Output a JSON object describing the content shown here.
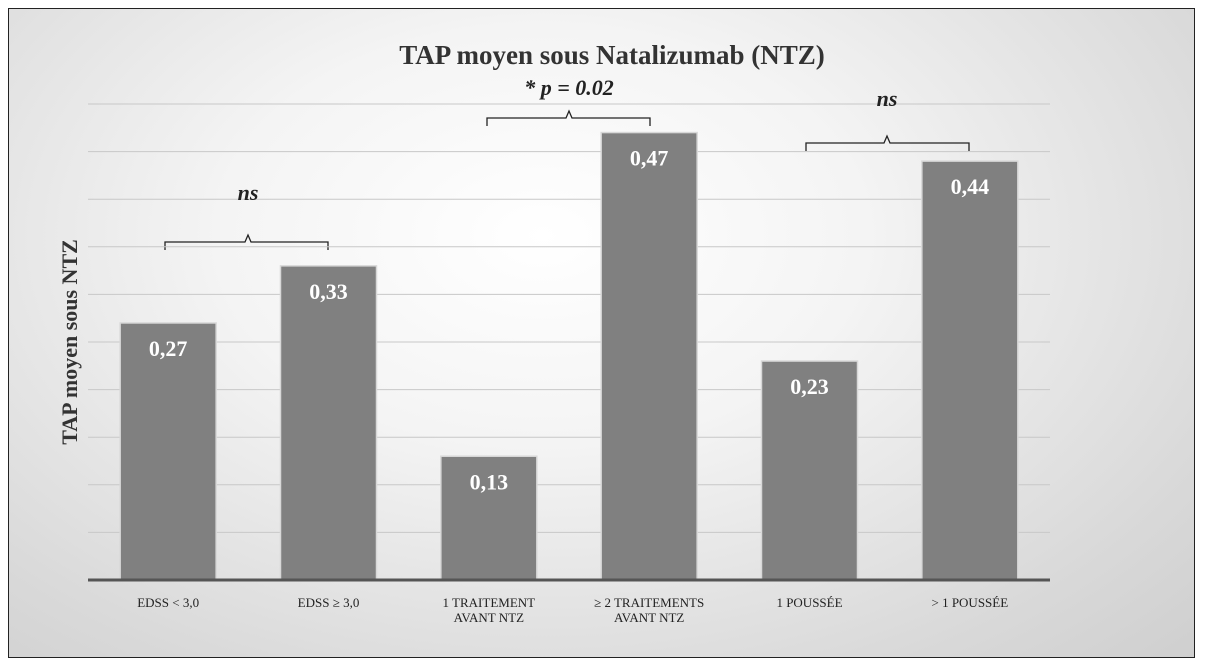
{
  "chart_data": {
    "type": "bar",
    "title": "TAP moyen sous Natalizumab (NTZ)",
    "y_label": "TAP moyen sous NTZ",
    "categories": [
      "EDSS < 3,0",
      "EDSS ≥ 3,0",
      "1 TRAITEMENT AVANT NTZ",
      "≥ 2 TRAITEMENTS AVANT NTZ",
      "1 POUSSÉE",
      "> 1 POUSSÉE"
    ],
    "values": [
      0.27,
      0.33,
      0.13,
      0.47,
      0.23,
      0.44
    ],
    "value_labels": [
      "0,27",
      "0,33",
      "0,13",
      "0,47",
      "0,23",
      "0,44"
    ],
    "color": "#808080",
    "ylim": [
      0,
      0.5
    ],
    "yticks": [
      0,
      0.05,
      0.1,
      0.15,
      0.2,
      0.25,
      0.3,
      0.35,
      0.4,
      0.45,
      0.5
    ],
    "grid": true,
    "annotations": [
      "ns",
      "* p = 0.02",
      "ns"
    ]
  }
}
